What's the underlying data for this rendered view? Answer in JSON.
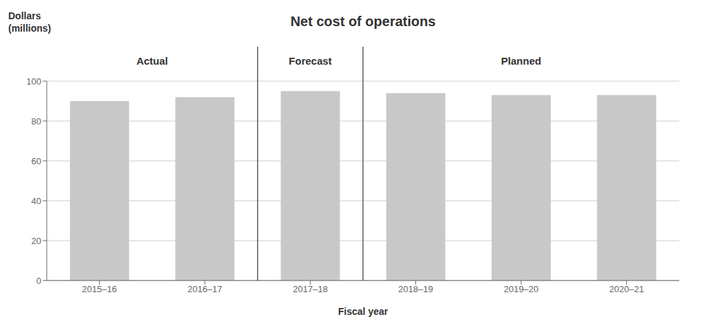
{
  "chart_data": {
    "type": "bar",
    "title": "Net cost of operations",
    "categories": [
      "2015–16",
      "2016–17",
      "2017–18",
      "2018–19",
      "2019–20",
      "2020–21"
    ],
    "values": [
      90,
      92,
      95,
      94,
      93,
      93
    ],
    "color": "#c8c8c8",
    "xlabel": "Fiscal year",
    "ylabel": "Dollars\n(millions)",
    "ylim": [
      0,
      100
    ],
    "yticks": [
      0,
      20,
      40,
      60,
      80,
      100
    ],
    "grid": true,
    "annotations": [
      {
        "text": "Actual",
        "from": "2015–16",
        "to": "2016–17"
      },
      {
        "text": "Forecast",
        "from": "2017–18",
        "to": "2017–18"
      },
      {
        "text": "Planned",
        "from": "2018–19",
        "to": "2020–21"
      }
    ]
  }
}
